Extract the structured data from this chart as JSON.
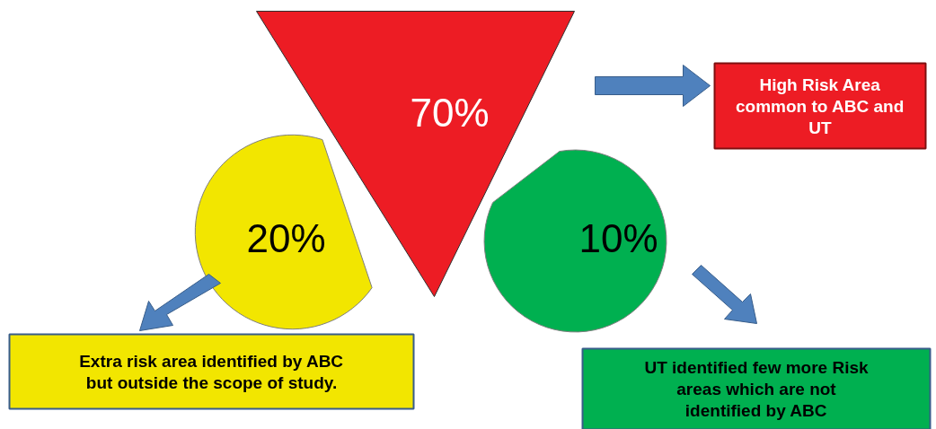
{
  "chart_data": {
    "type": "other",
    "categories": [
      "High Risk Area common to ABC and UT",
      "Extra risk area identified by ABC but outside the scope of study.",
      "UT identified few more Risk areas which are not identified by ABC"
    ],
    "values": [
      70,
      20,
      10
    ],
    "value_labels": [
      "70%",
      "20%",
      "10%"
    ],
    "colors": [
      "#ed1c24",
      "#f2e600",
      "#00b050"
    ]
  }
}
